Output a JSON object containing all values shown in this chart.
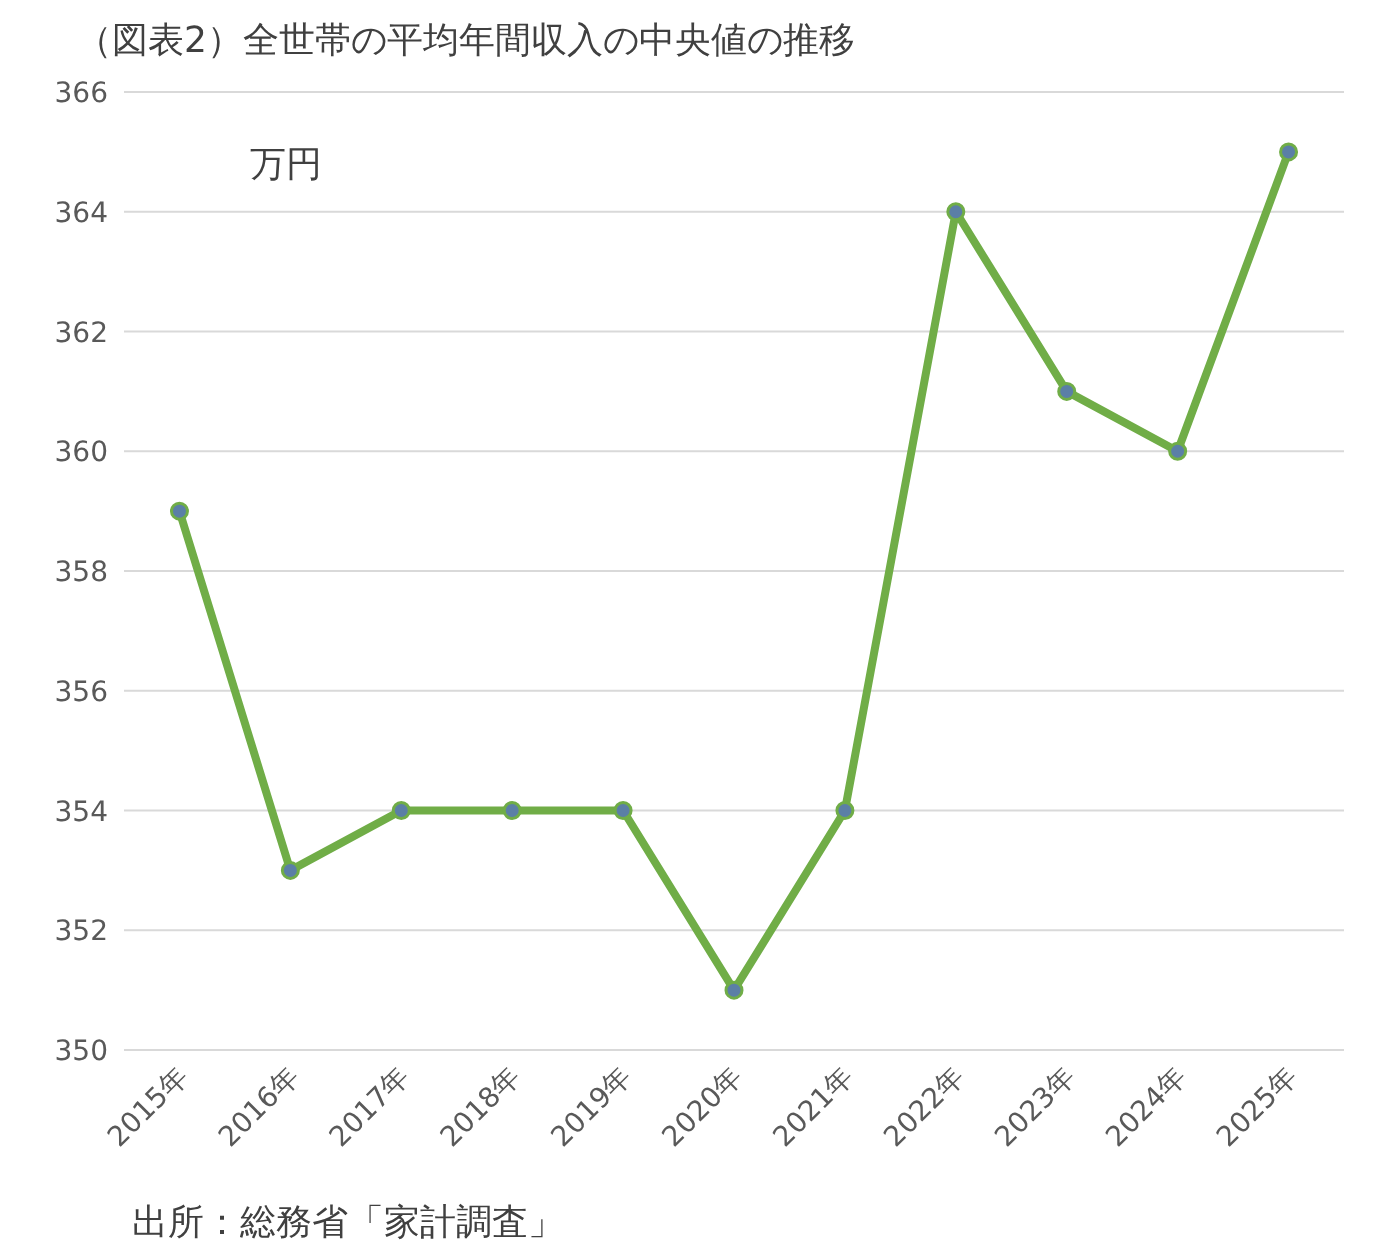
{
  "chart_data": {
    "type": "line",
    "title": "（図表2）全世帯の平均年間収入の中央値の推移",
    "ylabel": "万円",
    "categories": [
      "2015年",
      "2016年",
      "2017年",
      "2018年",
      "2019年",
      "2020年",
      "2021年",
      "2022年",
      "2023年",
      "2024年",
      "2025年"
    ],
    "series": [
      {
        "color": "#70ad47",
        "values": [
          359,
          353,
          354,
          354,
          354,
          351,
          354,
          364,
          361,
          360,
          365
        ]
      }
    ],
    "ylim": [
      350,
      366
    ],
    "yticks": [
      350,
      352,
      354,
      356,
      358,
      360,
      362,
      364,
      366
    ],
    "grid": "y",
    "marker": "circle",
    "line_style": "solid",
    "annotations": [
      "出所：総務省「家計調査」"
    ]
  }
}
